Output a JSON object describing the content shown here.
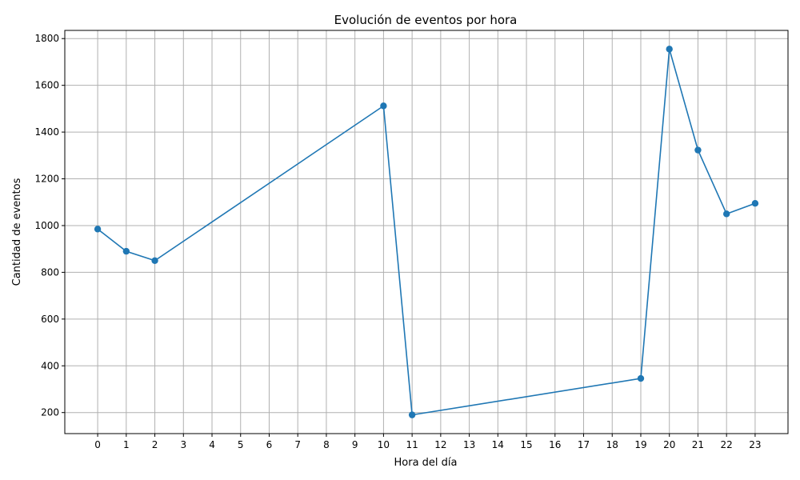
{
  "chart_data": {
    "type": "line",
    "title": "Evolución de eventos por hora",
    "xlabel": "Hora del día",
    "ylabel": "Cantidad de eventos",
    "x_ticks": [
      0,
      1,
      2,
      3,
      4,
      5,
      6,
      7,
      8,
      9,
      10,
      11,
      12,
      13,
      14,
      15,
      16,
      17,
      18,
      19,
      20,
      21,
      22,
      23
    ],
    "y_ticks": [
      200,
      400,
      600,
      800,
      1000,
      1200,
      1400,
      1600,
      1800
    ],
    "xlim": [
      -1.15,
      24.15
    ],
    "ylim": [
      110,
      1835
    ],
    "grid": true,
    "color": "#1f77b4",
    "series": [
      {
        "x": [
          0,
          1,
          2,
          10,
          11,
          19,
          20,
          21,
          22,
          23
        ],
        "y": [
          985,
          890,
          850,
          1512,
          190,
          346,
          1755,
          1323,
          1050,
          1095
        ]
      }
    ]
  }
}
